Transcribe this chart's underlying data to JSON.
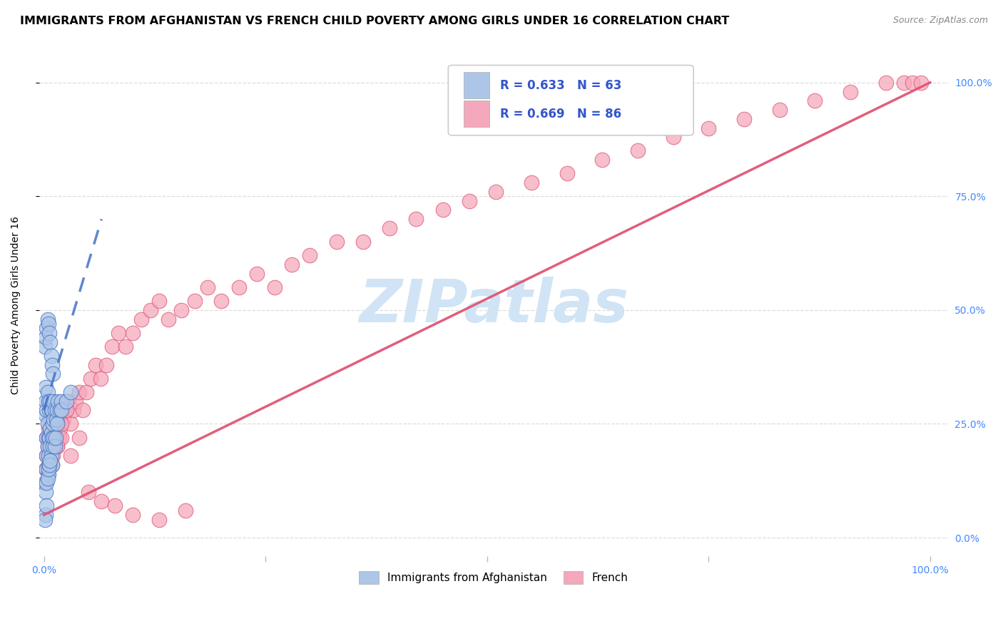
{
  "title": "IMMIGRANTS FROM AFGHANISTAN VS FRENCH CHILD POVERTY AMONG GIRLS UNDER 16 CORRELATION CHART",
  "source": "Source: ZipAtlas.com",
  "ylabel": "Child Poverty Among Girls Under 16",
  "y_tick_labels": [
    "0.0%",
    "25.0%",
    "50.0%",
    "75.0%",
    "100.0%"
  ],
  "y_tick_values": [
    0.0,
    0.25,
    0.5,
    0.75,
    1.0
  ],
  "legend_label1": "Immigrants from Afghanistan",
  "legend_label2": "French",
  "legend_r1": "R = 0.633",
  "legend_n1": "N = 63",
  "legend_r2": "R = 0.669",
  "legend_n2": "N = 86",
  "blue_color": "#adc6e8",
  "pink_color": "#f5a8bb",
  "blue_line_color": "#4472c4",
  "pink_line_color": "#e05575",
  "watermark_color": "#d0e4f5",
  "title_fontsize": 11.5,
  "axis_label_fontsize": 10,
  "tick_fontsize": 10,
  "blue_scatter_x": [
    0.001,
    0.002,
    0.002,
    0.002,
    0.003,
    0.003,
    0.003,
    0.003,
    0.004,
    0.004,
    0.004,
    0.005,
    0.005,
    0.005,
    0.005,
    0.006,
    0.006,
    0.006,
    0.007,
    0.007,
    0.007,
    0.008,
    0.008,
    0.008,
    0.009,
    0.009,
    0.009,
    0.01,
    0.01,
    0.01,
    0.011,
    0.011,
    0.012,
    0.012,
    0.013,
    0.014,
    0.015,
    0.016,
    0.018,
    0.02,
    0.001,
    0.002,
    0.003,
    0.004,
    0.005,
    0.006,
    0.007,
    0.008,
    0.009,
    0.01,
    0.002,
    0.003,
    0.004,
    0.005,
    0.006,
    0.007,
    0.015,
    0.02,
    0.025,
    0.03,
    0.002,
    0.003,
    0.001
  ],
  "blue_scatter_y": [
    0.12,
    0.27,
    0.3,
    0.33,
    0.15,
    0.18,
    0.22,
    0.28,
    0.2,
    0.25,
    0.32,
    0.14,
    0.18,
    0.22,
    0.3,
    0.16,
    0.22,
    0.28,
    0.2,
    0.24,
    0.3,
    0.18,
    0.23,
    0.28,
    0.16,
    0.22,
    0.28,
    0.2,
    0.25,
    0.3,
    0.22,
    0.26,
    0.2,
    0.28,
    0.22,
    0.26,
    0.28,
    0.3,
    0.28,
    0.3,
    0.42,
    0.44,
    0.46,
    0.48,
    0.47,
    0.45,
    0.43,
    0.4,
    0.38,
    0.36,
    0.1,
    0.12,
    0.13,
    0.15,
    0.16,
    0.17,
    0.25,
    0.28,
    0.3,
    0.32,
    0.05,
    0.07,
    0.04
  ],
  "pink_scatter_x": [
    0.002,
    0.003,
    0.004,
    0.005,
    0.006,
    0.007,
    0.008,
    0.009,
    0.01,
    0.011,
    0.012,
    0.013,
    0.014,
    0.015,
    0.016,
    0.017,
    0.018,
    0.019,
    0.02,
    0.022,
    0.025,
    0.028,
    0.03,
    0.033,
    0.036,
    0.04,
    0.044,
    0.048,
    0.053,
    0.058,
    0.064,
    0.07,
    0.077,
    0.084,
    0.092,
    0.1,
    0.11,
    0.12,
    0.13,
    0.14,
    0.155,
    0.17,
    0.185,
    0.2,
    0.22,
    0.24,
    0.26,
    0.28,
    0.3,
    0.33,
    0.36,
    0.39,
    0.42,
    0.45,
    0.48,
    0.51,
    0.55,
    0.59,
    0.63,
    0.67,
    0.71,
    0.75,
    0.79,
    0.83,
    0.87,
    0.91,
    0.95,
    0.97,
    0.98,
    0.99,
    0.003,
    0.005,
    0.007,
    0.009,
    0.012,
    0.015,
    0.02,
    0.025,
    0.03,
    0.04,
    0.05,
    0.065,
    0.08,
    0.1,
    0.13,
    0.16
  ],
  "pink_scatter_y": [
    0.15,
    0.18,
    0.2,
    0.16,
    0.22,
    0.18,
    0.2,
    0.16,
    0.18,
    0.22,
    0.2,
    0.24,
    0.22,
    0.2,
    0.25,
    0.22,
    0.24,
    0.26,
    0.22,
    0.26,
    0.28,
    0.3,
    0.25,
    0.28,
    0.3,
    0.32,
    0.28,
    0.32,
    0.35,
    0.38,
    0.35,
    0.38,
    0.42,
    0.45,
    0.42,
    0.45,
    0.48,
    0.5,
    0.52,
    0.48,
    0.5,
    0.52,
    0.55,
    0.52,
    0.55,
    0.58,
    0.55,
    0.6,
    0.62,
    0.65,
    0.65,
    0.68,
    0.7,
    0.72,
    0.74,
    0.76,
    0.78,
    0.8,
    0.83,
    0.85,
    0.88,
    0.9,
    0.92,
    0.94,
    0.96,
    0.98,
    1.0,
    1.0,
    1.0,
    1.0,
    0.22,
    0.24,
    0.26,
    0.22,
    0.24,
    0.2,
    0.25,
    0.28,
    0.18,
    0.22,
    0.1,
    0.08,
    0.07,
    0.05,
    0.04,
    0.06
  ],
  "blue_trend_x0": 0.0,
  "blue_trend_y0": 0.28,
  "blue_trend_x1": 0.065,
  "blue_trend_y1": 0.7,
  "pink_trend_x0": 0.0,
  "pink_trend_y0": 0.05,
  "pink_trend_x1": 1.0,
  "pink_trend_y1": 1.0,
  "xlim": [
    -0.005,
    1.02
  ],
  "ylim": [
    -0.04,
    1.06
  ],
  "background_color": "#ffffff",
  "grid_color": "#dddddd"
}
